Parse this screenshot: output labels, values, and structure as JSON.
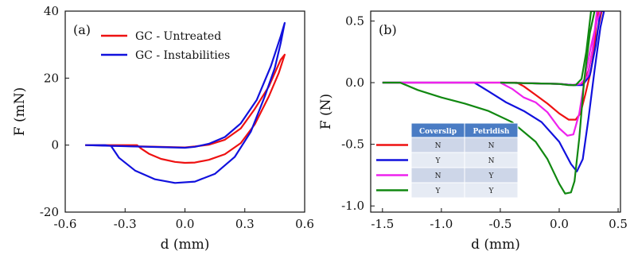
{
  "chart_data": [
    {
      "type": "line",
      "panel_label": "(a)",
      "xlabel": "d (mm)",
      "ylabel": "F (mN)",
      "xlim": [
        -0.6,
        0.6
      ],
      "ylim": [
        -20,
        40
      ],
      "xticks": [
        -0.6,
        -0.3,
        0.0,
        0.3,
        0.6
      ],
      "xtick_labels": [
        "-0.6",
        "-0.3",
        "0.0",
        "0.3",
        "0.6"
      ],
      "yticks": [
        -20,
        0,
        20,
        40
      ],
      "ytick_labels": [
        "-20",
        "0",
        "20",
        "40"
      ],
      "legend_placement": "top-center",
      "series": [
        {
          "name": "GC - Untreated",
          "color": "#ee1111",
          "x": [
            -0.5,
            -0.35,
            -0.24,
            -0.22,
            -0.18,
            -0.12,
            -0.05,
            0.0,
            0.05,
            0.12,
            0.2,
            0.28,
            0.35,
            0.42,
            0.47,
            0.5,
            0.48,
            0.42,
            0.35,
            0.28,
            0.2,
            0.12,
            0.05,
            0.0,
            -0.5
          ],
          "y": [
            0.0,
            0.0,
            0.0,
            -1.0,
            -2.6,
            -4.1,
            -5.0,
            -5.3,
            -5.2,
            -4.4,
            -2.7,
            0.6,
            6.2,
            14.5,
            21.5,
            27.0,
            25.5,
            17.5,
            10.8,
            5.0,
            1.6,
            0.1,
            -0.4,
            -0.7,
            0.0
          ]
        },
        {
          "name": "GC - Instabilities",
          "color": "#1111dd",
          "x": [
            -0.5,
            -0.4,
            -0.37,
            -0.33,
            -0.25,
            -0.15,
            -0.05,
            0.05,
            0.15,
            0.25,
            0.33,
            0.4,
            0.45,
            0.48,
            0.5,
            0.48,
            0.43,
            0.36,
            0.28,
            0.2,
            0.12,
            0.05,
            0.0,
            -0.5
          ],
          "y": [
            0.0,
            0.0,
            -0.3,
            -3.8,
            -7.6,
            -10.2,
            -11.3,
            -10.9,
            -8.6,
            -3.5,
            4.0,
            14.5,
            23.0,
            30.5,
            36.5,
            32.5,
            23.5,
            13.5,
            6.5,
            2.4,
            0.4,
            -0.5,
            -0.8,
            0.0
          ]
        }
      ]
    },
    {
      "type": "line",
      "panel_label": "(b)",
      "xlabel": "d (mm)",
      "ylabel": "F (N)",
      "xlim": [
        -1.6,
        0.52
      ],
      "ylim": [
        -1.05,
        0.58
      ],
      "xticks": [
        -1.5,
        -1.0,
        -0.5,
        0.0,
        0.5
      ],
      "xtick_labels": [
        "-1.5",
        "-1.0",
        "-0.5",
        "0.0",
        "0.5"
      ],
      "yticks": [
        -1.0,
        -0.5,
        0.0,
        0.5
      ],
      "ytick_labels": [
        "-1.0",
        "-0.5",
        "0.0",
        "0.5"
      ],
      "legend_placement": "bottom-left",
      "table": {
        "headers": [
          "Coverslip",
          "Petridish"
        ],
        "rows": [
          {
            "color": "#ee1111",
            "cells": [
              "N",
              "N"
            ]
          },
          {
            "color": "#1111dd",
            "cells": [
              "Y",
              "N"
            ]
          },
          {
            "color": "#ee22ee",
            "cells": [
              "N",
              "Y"
            ]
          },
          {
            "color": "#118811",
            "cells": [
              "Y",
              "Y"
            ]
          }
        ]
      },
      "series": [
        {
          "color": "#ee1111",
          "x": [
            -1.5,
            -0.36,
            -0.3,
            -0.2,
            -0.1,
            0.0,
            0.08,
            0.14,
            0.18,
            0.22,
            0.27,
            0.31,
            0.36,
            0.33,
            0.29,
            0.25,
            0.2,
            0.12,
            0.0,
            -0.5
          ],
          "y": [
            0.0,
            0.0,
            -0.03,
            -0.1,
            -0.17,
            -0.25,
            -0.3,
            -0.3,
            -0.25,
            -0.1,
            0.1,
            0.35,
            0.58,
            0.58,
            0.3,
            0.1,
            -0.01,
            -0.02,
            -0.01,
            0.0
          ],
          "extra_return": true
        },
        {
          "color": "#1111dd",
          "x": [
            -1.5,
            -0.72,
            -0.6,
            -0.45,
            -0.3,
            -0.15,
            0.0,
            0.1,
            0.15,
            0.2,
            0.25,
            0.3,
            0.35,
            0.38,
            0.35,
            0.31,
            0.26,
            0.2,
            0.12,
            0.0,
            -0.5
          ],
          "y": [
            0.0,
            0.0,
            -0.07,
            -0.16,
            -0.23,
            -0.32,
            -0.48,
            -0.66,
            -0.72,
            -0.62,
            -0.28,
            0.1,
            0.45,
            0.58,
            0.58,
            0.3,
            0.06,
            -0.02,
            -0.02,
            -0.01,
            0.0
          ]
        },
        {
          "color": "#ee22ee",
          "x": [
            -1.5,
            -0.5,
            -0.4,
            -0.3,
            -0.2,
            -0.1,
            0.0,
            0.07,
            0.12,
            0.17,
            0.22,
            0.27,
            0.32,
            0.35,
            0.32,
            0.28,
            0.24,
            0.18,
            0.1,
            0.0,
            -0.5
          ],
          "y": [
            0.0,
            0.0,
            -0.05,
            -0.12,
            -0.16,
            -0.24,
            -0.37,
            -0.43,
            -0.42,
            -0.25,
            0.05,
            0.3,
            0.5,
            0.58,
            0.58,
            0.25,
            0.05,
            -0.01,
            -0.02,
            -0.01,
            0.0
          ]
        },
        {
          "color": "#118811",
          "x": [
            -1.5,
            -1.35,
            -1.2,
            -1.0,
            -0.8,
            -0.6,
            -0.4,
            -0.2,
            -0.1,
            0.0,
            0.05,
            0.1,
            0.13,
            0.17,
            0.21,
            0.26,
            0.3,
            0.27,
            0.23,
            0.19,
            0.14,
            0.08,
            0.0,
            -0.5
          ],
          "y": [
            0.0,
            0.0,
            -0.06,
            -0.12,
            -0.17,
            -0.23,
            -0.32,
            -0.48,
            -0.62,
            -0.82,
            -0.9,
            -0.89,
            -0.8,
            -0.45,
            0.0,
            0.4,
            0.58,
            0.58,
            0.25,
            0.03,
            -0.02,
            -0.02,
            -0.01,
            0.0
          ]
        }
      ]
    }
  ]
}
